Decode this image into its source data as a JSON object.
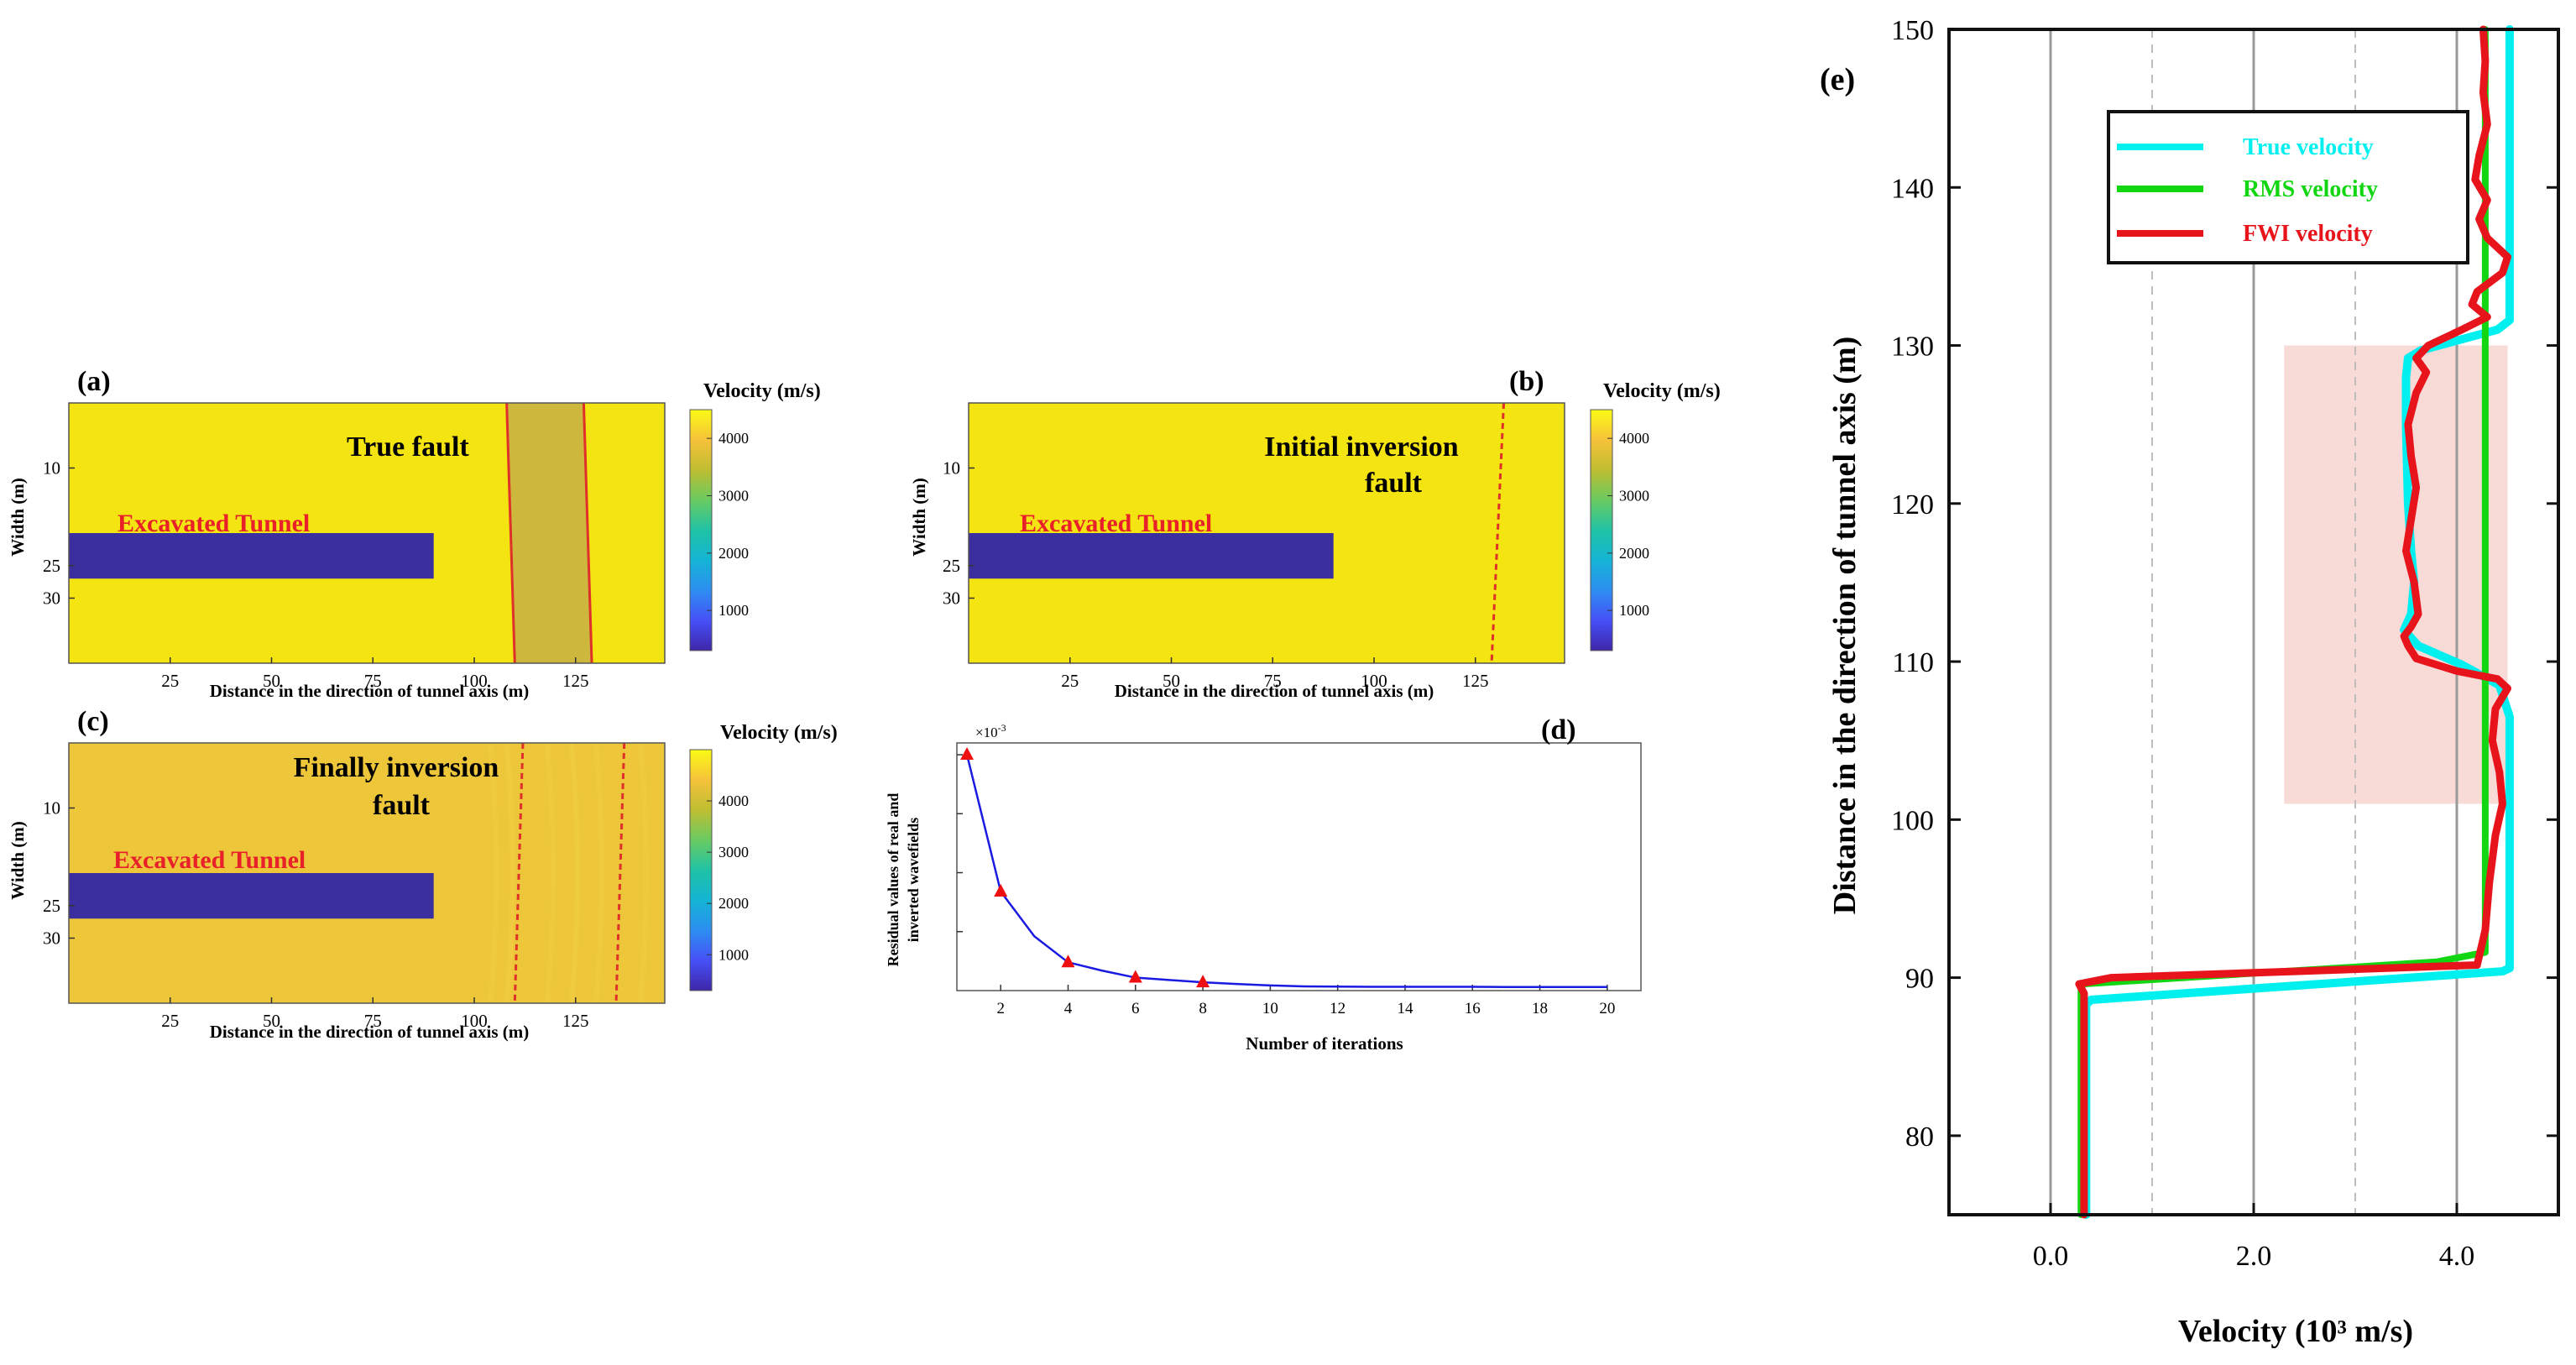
{
  "colors": {
    "field": "#f4e411",
    "field_c": "#eec63a",
    "fault_band": "#cdb73d",
    "tunnel": "#3b2e9e",
    "tunnel_text": "#e8202a",
    "fault_line": "#e0302a",
    "true_velocity": "#00f0f0",
    "rms_velocity": "#12d612",
    "fwi_velocity": "#e8141c",
    "shade": "#f7d4d0",
    "residual_line": "#1a1ae0",
    "residual_marker": "#ee1010"
  },
  "chart_data": [
    {
      "id": "a",
      "type": "heatmap",
      "panel_label": "(a)",
      "title": "True fault",
      "tunnel_label": "Excavated Tunnel",
      "xlabel": "Distance in the direction of tunnel axis  (m)",
      "ylabel": "Width (m)",
      "xlim": [
        0,
        147
      ],
      "ylim": [
        0,
        40
      ],
      "x_ticks": [
        25,
        50,
        75,
        100,
        125
      ],
      "y_ticks": [
        10,
        25,
        30
      ],
      "tunnel_x": [
        0,
        90
      ],
      "tunnel_width": [
        20,
        27
      ],
      "fault_x_top": [
        108,
        127
      ],
      "fault_x_bottom": [
        110,
        129
      ],
      "colorbar_title": "Velocity (m/s)",
      "colorbar_ticks": [
        1000,
        2000,
        3000,
        4000
      ],
      "colorbar_range": [
        300,
        4500
      ]
    },
    {
      "id": "b",
      "type": "heatmap",
      "panel_label": "(b)",
      "title_lines": [
        "Initial inversion",
        "fault"
      ],
      "tunnel_label": "Excavated Tunnel",
      "xlabel": "Distance in the direction of tunnel axis  (m)",
      "ylabel": "Width (m)",
      "xlim": [
        0,
        147
      ],
      "ylim": [
        0,
        40
      ],
      "x_ticks": [
        25,
        50,
        75,
        100,
        125
      ],
      "y_ticks": [
        10,
        25,
        30
      ],
      "tunnel_x": [
        0,
        90
      ],
      "tunnel_width": [
        20,
        27
      ],
      "fault_line_x_top": 132,
      "fault_line_x_bottom": 129,
      "colorbar_title": "Velocity (m/s)",
      "colorbar_ticks": [
        1000,
        2000,
        3000,
        4000
      ],
      "colorbar_range": [
        300,
        4500
      ]
    },
    {
      "id": "c",
      "type": "heatmap",
      "panel_label": "(c)",
      "title_lines": [
        "Finally inversion",
        "fault"
      ],
      "tunnel_label": "Excavated Tunnel",
      "xlabel": "Distance in the direction of tunnel axis  (m)",
      "ylabel": "Width (m)",
      "xlim": [
        0,
        147
      ],
      "ylim": [
        0,
        40
      ],
      "x_ticks": [
        25,
        50,
        75,
        100,
        125
      ],
      "y_ticks": [
        10,
        25,
        30
      ],
      "tunnel_x": [
        0,
        90
      ],
      "tunnel_width": [
        20,
        27
      ],
      "fault_lines": [
        {
          "x_top": 112,
          "x_bottom": 110
        },
        {
          "x_top": 137,
          "x_bottom": 135
        }
      ],
      "colorbar_title": "Velocity (m/s)",
      "colorbar_ticks": [
        1000,
        2000,
        3000,
        4000
      ],
      "colorbar_range": [
        300,
        5000
      ]
    },
    {
      "id": "d",
      "type": "line",
      "panel_label": "(d)",
      "xlabel": "Number of iterations",
      "ylabel_lines": [
        "Residual values of real and",
        "inverted wavefields"
      ],
      "exponent_label": "×10",
      "exponent_power": "-3",
      "xlim": [
        0.7,
        21
      ],
      "ylim": [
        0,
        1.05
      ],
      "x_ticks": [
        2,
        4,
        6,
        8,
        10,
        12,
        14,
        16,
        18,
        20
      ],
      "x": [
        1,
        2,
        3,
        4,
        5,
        6,
        7,
        8,
        9,
        10,
        11,
        12,
        13,
        14,
        15,
        16,
        17,
        18,
        19,
        20
      ],
      "values": [
        1.0,
        0.42,
        0.23,
        0.12,
        0.085,
        0.055,
        0.045,
        0.035,
        0.028,
        0.022,
        0.018,
        0.017,
        0.016,
        0.016,
        0.016,
        0.016,
        0.015,
        0.015,
        0.015,
        0.015
      ],
      "marker_x": [
        1,
        2,
        4,
        6,
        8
      ]
    },
    {
      "id": "e",
      "type": "line",
      "panel_label": "(e)",
      "xlabel": "Velocity (10³ m/s)",
      "ylabel": "Distance in the direction of tunnel axis (m)",
      "xlim": [
        -1.0,
        5.0
      ],
      "ylim": [
        75,
        150
      ],
      "x_ticks": [
        0,
        2,
        4
      ],
      "x_tick_labels": [
        "0.0",
        "2.0",
        "4.0"
      ],
      "y_ticks": [
        80,
        90,
        100,
        110,
        120,
        130,
        140,
        150
      ],
      "solid_gridlines_x": [
        0,
        2,
        4
      ],
      "dashed_gridlines_x": [
        1,
        3
      ],
      "shaded_region": {
        "x": [
          2.3,
          4.5
        ],
        "y": [
          101,
          130
        ]
      },
      "legend_position": "top-right",
      "series": [
        {
          "name": "True velocity",
          "distance": [
            75,
            88.3,
            88.6,
            90.4,
            90.6,
            106.5,
            108.5,
            109.8,
            111,
            112,
            113,
            115,
            117,
            120,
            125,
            128,
            129.2,
            129.7,
            131,
            131.6,
            132,
            150
          ],
          "velocity": [
            0.35,
            0.35,
            0.4,
            4.45,
            4.52,
            4.52,
            4.42,
            4.05,
            3.62,
            3.48,
            3.55,
            3.58,
            3.55,
            3.52,
            3.5,
            3.5,
            3.52,
            3.65,
            4.4,
            4.52,
            4.52,
            4.52
          ]
        },
        {
          "name": "RMS velocity",
          "distance": [
            75,
            89.2,
            89.6,
            91.0,
            91.6,
            150
          ],
          "velocity": [
            0.3,
            0.3,
            0.32,
            3.8,
            4.28,
            4.28
          ]
        },
        {
          "name": "FWI velocity",
          "distance": [
            75,
            89,
            89.6,
            90.0,
            90.4,
            90.8,
            93,
            96,
            99,
            101,
            103,
            105,
            107,
            108.3,
            108.9,
            109.4,
            110.2,
            111,
            111.6,
            112.2,
            113,
            115,
            117,
            119,
            121,
            123,
            125,
            127,
            128.3,
            129.2,
            130,
            131,
            131.8,
            132.6,
            133.4,
            134.6,
            135.6,
            136.8,
            138,
            139.2,
            140.5,
            142,
            144,
            146,
            148,
            150
          ],
          "velocity": [
            0.33,
            0.33,
            0.28,
            0.6,
            2.4,
            4.2,
            4.28,
            4.32,
            4.38,
            4.45,
            4.42,
            4.35,
            4.38,
            4.5,
            4.4,
            4.0,
            3.6,
            3.52,
            3.48,
            3.55,
            3.62,
            3.58,
            3.5,
            3.55,
            3.6,
            3.55,
            3.52,
            3.6,
            3.7,
            3.6,
            3.72,
            4.05,
            4.3,
            4.15,
            4.2,
            4.45,
            4.5,
            4.3,
            4.22,
            4.3,
            4.18,
            4.22,
            4.3,
            4.26,
            4.28,
            4.26
          ]
        }
      ]
    }
  ]
}
